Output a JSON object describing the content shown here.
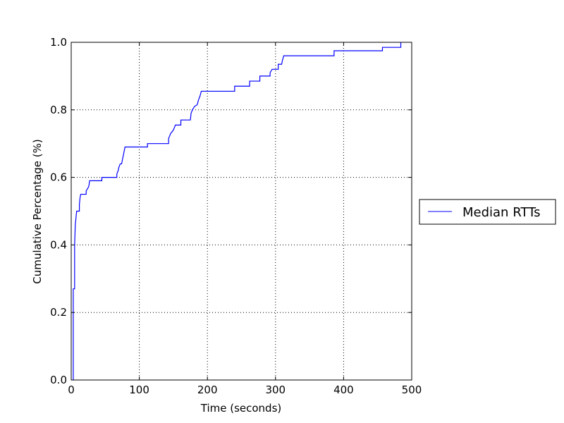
{
  "chart_data": {
    "type": "line",
    "title": "",
    "xlabel": "Time (seconds)",
    "ylabel": "Cumulative Percentage (%)",
    "xlim": [
      0,
      500
    ],
    "ylim": [
      0.0,
      1.0
    ],
    "x_ticks": [
      "0",
      "100",
      "200",
      "300",
      "400",
      "500"
    ],
    "y_ticks": [
      "0.0",
      "0.2",
      "0.4",
      "0.6",
      "0.8",
      "1.0"
    ],
    "grid": true,
    "legend_position": "right",
    "step": true,
    "series": [
      {
        "name": "Median RTTs",
        "color": "#0000ff",
        "points": [
          [
            3,
            0.0
          ],
          [
            3,
            0.27
          ],
          [
            5,
            0.27
          ],
          [
            5,
            0.4
          ],
          [
            6,
            0.46
          ],
          [
            7,
            0.48
          ],
          [
            8,
            0.5
          ],
          [
            12,
            0.5
          ],
          [
            12,
            0.52
          ],
          [
            13,
            0.54
          ],
          [
            14,
            0.55
          ],
          [
            22,
            0.55
          ],
          [
            22,
            0.56
          ],
          [
            25,
            0.57
          ],
          [
            26,
            0.575
          ],
          [
            27,
            0.59
          ],
          [
            45,
            0.59
          ],
          [
            45,
            0.6
          ],
          [
            67,
            0.6
          ],
          [
            67,
            0.61
          ],
          [
            69,
            0.62
          ],
          [
            70,
            0.63
          ],
          [
            72,
            0.64
          ],
          [
            74,
            0.64
          ],
          [
            75,
            0.65
          ],
          [
            76,
            0.66
          ],
          [
            77,
            0.67
          ],
          [
            78,
            0.68
          ],
          [
            79,
            0.69
          ],
          [
            112,
            0.69
          ],
          [
            112,
            0.7
          ],
          [
            143,
            0.7
          ],
          [
            143,
            0.715
          ],
          [
            146,
            0.73
          ],
          [
            150,
            0.74
          ],
          [
            153,
            0.755
          ],
          [
            161,
            0.755
          ],
          [
            161,
            0.77
          ],
          [
            175,
            0.77
          ],
          [
            176,
            0.79
          ],
          [
            178,
            0.8
          ],
          [
            181,
            0.81
          ],
          [
            185,
            0.815
          ],
          [
            187,
            0.83
          ],
          [
            189,
            0.84
          ],
          [
            191,
            0.855
          ],
          [
            240,
            0.855
          ],
          [
            240,
            0.87
          ],
          [
            262,
            0.87
          ],
          [
            262,
            0.885
          ],
          [
            277,
            0.885
          ],
          [
            277,
            0.9
          ],
          [
            292,
            0.9
          ],
          [
            292,
            0.91
          ],
          [
            295,
            0.92
          ],
          [
            304,
            0.92
          ],
          [
            304,
            0.935
          ],
          [
            309,
            0.935
          ],
          [
            310,
            0.945
          ],
          [
            312,
            0.96
          ],
          [
            386,
            0.96
          ],
          [
            386,
            0.975
          ],
          [
            457,
            0.975
          ],
          [
            457,
            0.985
          ],
          [
            484,
            0.985
          ],
          [
            484,
            1.0
          ]
        ]
      }
    ]
  }
}
